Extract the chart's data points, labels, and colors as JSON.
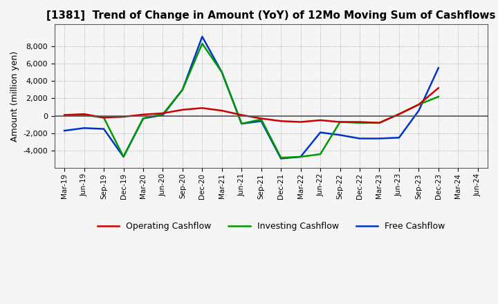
{
  "title": "[1381]  Trend of Change in Amount (YoY) of 12Mo Moving Sum of Cashflows",
  "ylabel": "Amount (million yen)",
  "background_color": "#f5f5f5",
  "plot_bg_color": "#f5f5f5",
  "grid_color": "#999999",
  "x_labels": [
    "Mar-19",
    "Jun-19",
    "Sep-19",
    "Dec-19",
    "Mar-20",
    "Jun-20",
    "Sep-20",
    "Dec-20",
    "Mar-21",
    "Jun-21",
    "Sep-21",
    "Dec-21",
    "Mar-22",
    "Jun-22",
    "Sep-22",
    "Dec-22",
    "Mar-23",
    "Jun-23",
    "Sep-23",
    "Dec-23",
    "Mar-24",
    "Jun-24"
  ],
  "operating_cashflow": [
    100,
    200,
    -200,
    -100,
    150,
    300,
    700,
    900,
    600,
    100,
    -300,
    -600,
    -700,
    -500,
    -700,
    -700,
    -800,
    200,
    1300,
    3200,
    null,
    null
  ],
  "investing_cashflow": [
    100,
    100,
    -200,
    -4700,
    -300,
    200,
    3000,
    8300,
    5000,
    -900,
    -400,
    -4800,
    -4700,
    -4400,
    -700,
    -800,
    -800,
    200,
    1300,
    2200,
    null,
    null
  ],
  "free_cashflow": [
    -1700,
    -1400,
    -1500,
    -4700,
    -300,
    100,
    3000,
    9100,
    5000,
    -900,
    -600,
    -4900,
    -4700,
    -1900,
    -2200,
    -2600,
    -2600,
    -2500,
    600,
    5500,
    null,
    null
  ],
  "op_color": "#cc0000",
  "inv_color": "#009900",
  "free_color": "#0033cc",
  "ylim": [
    -6000,
    10500
  ],
  "yticks": [
    -4000,
    -2000,
    0,
    2000,
    4000,
    6000,
    8000
  ],
  "legend_labels": [
    "Operating Cashflow",
    "Investing Cashflow",
    "Free Cashflow"
  ]
}
